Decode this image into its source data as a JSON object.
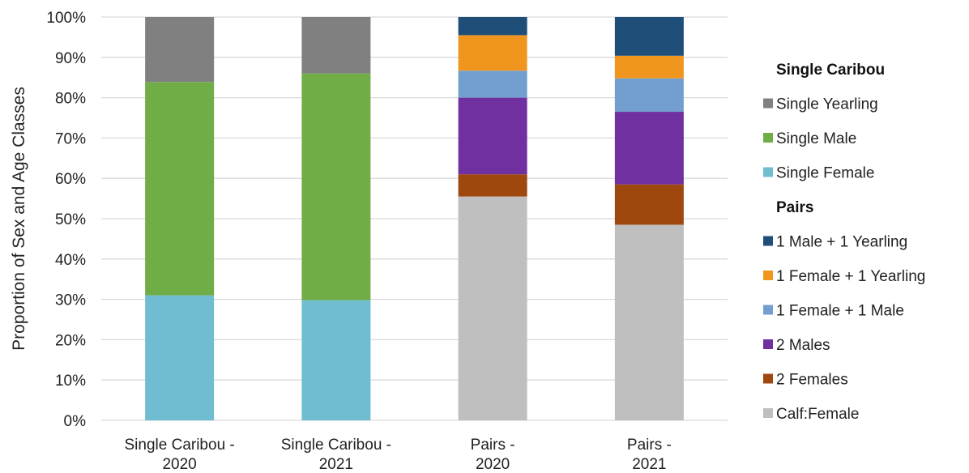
{
  "chart_data": {
    "type": "bar",
    "stacked": true,
    "ylabel": "Proportion of Sex and Age Classes",
    "ylim": [
      0,
      100
    ],
    "yticks": [
      "0%",
      "10%",
      "20%",
      "30%",
      "40%",
      "50%",
      "60%",
      "70%",
      "80%",
      "90%",
      "100%"
    ],
    "grid": true,
    "legend_position": "right",
    "categories": [
      [
        "Single Caribou -",
        "2020"
      ],
      [
        "Single Caribou -",
        "2021"
      ],
      [
        "Pairs -",
        "2020"
      ],
      [
        "Pairs -",
        "2021"
      ]
    ],
    "series": [
      {
        "name": "Calf:Female",
        "color": "#BFBFBF",
        "values": [
          0,
          0,
          55.5,
          48.5
        ]
      },
      {
        "name": "2 Females",
        "color": "#9E480E",
        "values": [
          0,
          0,
          5.5,
          10
        ]
      },
      {
        "name": "2 Males",
        "color": "#7030A0",
        "values": [
          0,
          0,
          19,
          18
        ]
      },
      {
        "name": "1 Female + 1 Male",
        "color": "#729FCF",
        "values": [
          0,
          0,
          6.7,
          8.3
        ]
      },
      {
        "name": "1 Female + 1 Yearling",
        "color": "#F0961E",
        "values": [
          0,
          0,
          8.8,
          5.6
        ]
      },
      {
        "name": "1 Male + 1 Yearling",
        "color": "#1F4E79",
        "values": [
          0,
          0,
          4.5,
          9.6
        ]
      },
      {
        "name": "Single Female",
        "color": "#70BDD2",
        "values": [
          31,
          29.8,
          0,
          0
        ]
      },
      {
        "name": "Single Male",
        "color": "#70AD47",
        "values": [
          52.9,
          56.2,
          0,
          0
        ]
      },
      {
        "name": "Single Yearling",
        "color": "#808080",
        "values": [
          16.1,
          14,
          0,
          0
        ]
      }
    ],
    "legend": [
      {
        "heading": "Single Caribou",
        "items": [
          "Single Yearling",
          "Single Male",
          "Single Female"
        ]
      },
      {
        "heading": "Pairs",
        "items": [
          "1 Male + 1 Yearling",
          "1 Female + 1 Yearling",
          "1 Female + 1 Male",
          "2 Males",
          "2 Females",
          "Calf:Female"
        ]
      }
    ]
  }
}
